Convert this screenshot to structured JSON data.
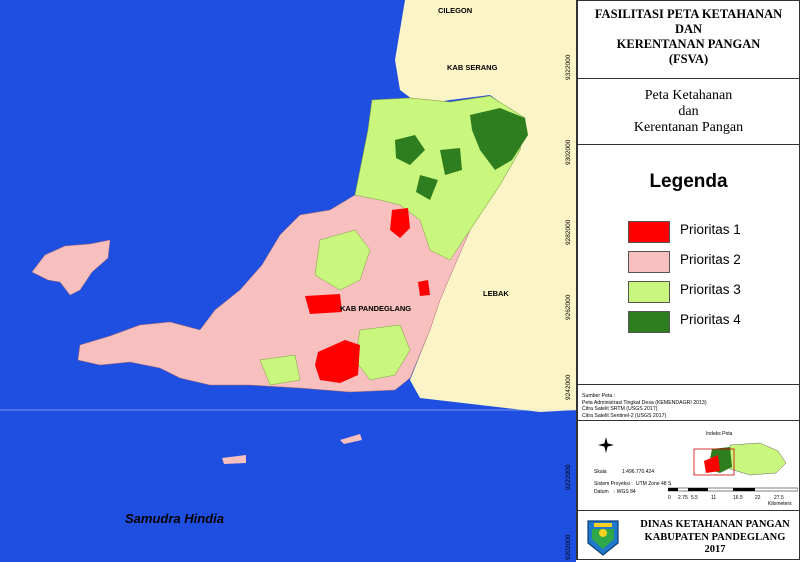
{
  "colors": {
    "sea": "#1f4fe0",
    "land": "#fbf4c6",
    "prioritas1": "#ff0000",
    "prioritas2": "#f8bfbf",
    "prioritas3": "#c9f77d",
    "prioritas4": "#2e7d1e"
  },
  "title": {
    "line1": "FASILITASI PETA KETAHANAN",
    "line2": "DAN",
    "line3": "KERENTANAN PANGAN",
    "line4": "(FSVA)"
  },
  "subtitle": {
    "line1": "Peta Ketahanan",
    "line2": "dan",
    "line3": "Kerentanan Pangan"
  },
  "legend": {
    "title": "Legenda",
    "items": [
      {
        "label": "Prioritas 1",
        "color": "#ff0000"
      },
      {
        "label": "Prioritas 2",
        "color": "#f8bfbf"
      },
      {
        "label": "Prioritas 3",
        "color": "#c9f77d"
      },
      {
        "label": "Prioritas 4",
        "color": "#2e7d1e"
      }
    ]
  },
  "sources": {
    "heading": "Sumber Peta :",
    "lines": [
      "Peta Administrasi Tingkat Desa (KEMENDAGRI 2013)",
      "Citra Satelit SRTM (USGS 2017)",
      "Citra Satelit Sentinel-2 (USGS 2017)"
    ]
  },
  "map_info": {
    "index_title": "Indeks Peta",
    "scale_label": "Skala",
    "scale_value": "1:496.770.424",
    "projection_label": "Sistem Proyeksi :",
    "projection_value": "UTM Zone 48 S",
    "datum_label": "Datum",
    "datum_value": ": WGS 84",
    "scale_ticks": [
      "0",
      "2.75",
      "5.5",
      "11",
      "16.5",
      "22",
      "27.5"
    ],
    "scale_unit": "Kilometers"
  },
  "footer": {
    "line1": "DINAS KETAHANAN PANGAN",
    "line2": "KABUPATEN PANDEGLANG",
    "line3": "2017"
  },
  "map_labels": {
    "cilegon": "CILEGON",
    "kab_serang": "KAB SERANG",
    "lebak": "LEBAK",
    "kab_pandeglang": "KAB PANDEGLANG",
    "samudra_hindia": "Samudra Hindia"
  },
  "grid_labels": {
    "y": [
      "9322000",
      "9302000",
      "9282000",
      "9262000",
      "9242000",
      "9222000",
      "9202000"
    ]
  }
}
